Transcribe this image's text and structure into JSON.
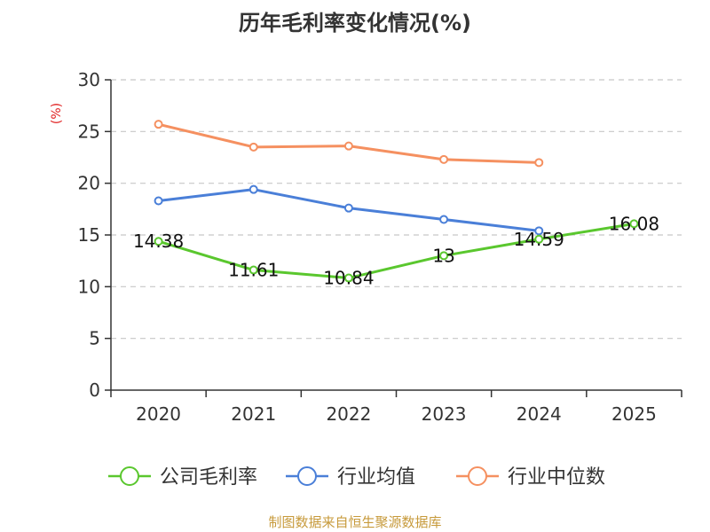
{
  "title": "历年毛利率变化情况(%)",
  "source": "制图数据来自恒生聚源数据库",
  "colors": {
    "company": "#5ac72e",
    "industry_avg": "#4a7fd8",
    "industry_median": "#f59060",
    "unit": "#e02020",
    "source": "#c79a3b"
  },
  "chart_data": {
    "type": "line",
    "title": "历年毛利率变化情况(%)",
    "ylabel": "(%)",
    "xlabel": "",
    "categories": [
      "2020",
      "2021",
      "2022",
      "2023",
      "2024",
      "2025"
    ],
    "ylim": [
      0,
      30
    ],
    "yticks": [
      "0",
      "5",
      "10",
      "15",
      "20",
      "25",
      "30"
    ],
    "grid": true,
    "legend_position": "bottom",
    "series": [
      {
        "name": "公司毛利率",
        "values": [
          14.38,
          11.61,
          10.84,
          13,
          14.59,
          16.08
        ],
        "labels": [
          "14.38",
          "11.61",
          "10.84",
          "13",
          "14.59",
          "16.08"
        ]
      },
      {
        "name": "行业均值",
        "values": [
          18.3,
          19.4,
          17.6,
          16.5,
          15.4,
          null
        ]
      },
      {
        "name": "行业中位数",
        "values": [
          25.7,
          23.5,
          23.6,
          22.3,
          22.0,
          null
        ]
      }
    ]
  }
}
